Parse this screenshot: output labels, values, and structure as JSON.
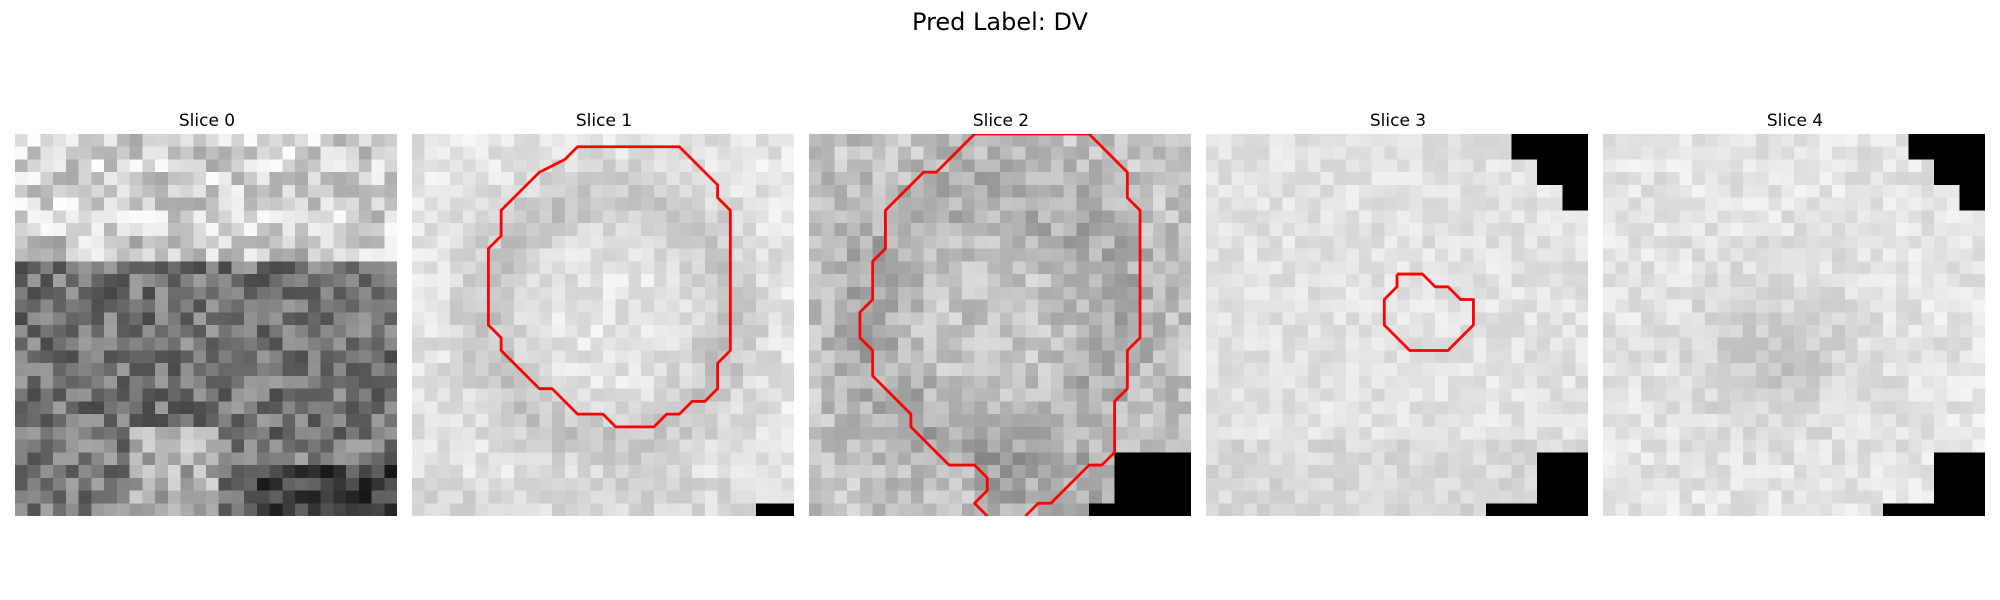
{
  "suptitle": "Pred Label: DV",
  "panels": [
    {
      "title": "Slice 0",
      "has_contour": false
    },
    {
      "title": "Slice 1",
      "has_contour": true
    },
    {
      "title": "Slice 2",
      "has_contour": true
    },
    {
      "title": "Slice 3",
      "has_contour": true
    },
    {
      "title": "Slice 4",
      "has_contour": false
    }
  ],
  "colors": {
    "contour": "#ff0000",
    "mask": "#000000"
  }
}
